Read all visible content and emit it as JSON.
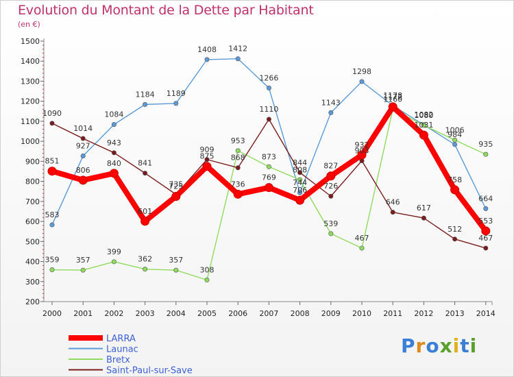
{
  "title": "Evolution du Montant de la Dette par Habitant",
  "subtitle": "(en €)",
  "logo": {
    "text": "Proxiti",
    "colors": [
      "#3a7fd5",
      "#e08a1e",
      "#3a7fd5",
      "#5aa02c",
      "#e0b020",
      "#3a7fd5",
      "#5aa02c"
    ]
  },
  "chart_data": {
    "type": "line",
    "title": "Evolution du Montant de la Dette par Habitant",
    "subtitle": "(en €)",
    "x": [
      "2000",
      "2001",
      "2002",
      "2003",
      "2004",
      "2005",
      "2006",
      "2007",
      "2008",
      "2009",
      "2010",
      "2011",
      "2012",
      "2013",
      "2014"
    ],
    "ylim": [
      200,
      1500
    ],
    "yticks": [
      200,
      300,
      400,
      500,
      600,
      700,
      800,
      900,
      1000,
      1100,
      1200,
      1300,
      1400,
      1500
    ],
    "grid": false,
    "legend": "bottom-left",
    "series": [
      {
        "name": "LARRA",
        "color": "#ff0000",
        "values": [
          851,
          806,
          840,
          601,
          725,
          875,
          736,
          769,
          706,
          827,
          932,
          1172,
          1031,
          758,
          553
        ],
        "labels": [
          "851",
          "806",
          "840",
          "601",
          "725",
          "875",
          "736",
          "769",
          "706",
          "827",
          "932",
          "1172",
          "1031",
          "758",
          "553"
        ]
      },
      {
        "name": "Launac",
        "color": "#5b9ad8",
        "values": [
          583,
          927,
          1084,
          1184,
          1189,
          1408,
          1412,
          1266,
          744,
          1143,
          1298,
          1178,
          1082,
          984,
          664
        ],
        "labels": [
          "583",
          "927",
          "1084",
          "1184",
          "1189",
          "1408",
          "1412",
          "1266",
          "744",
          "1143",
          "1298",
          "1178",
          "1082",
          "984",
          "664"
        ]
      },
      {
        "name": "Bretx",
        "color": "#8fdb5e",
        "values": [
          359,
          357,
          399,
          362,
          357,
          308,
          953,
          873,
          808,
          539,
          467,
          1160,
          1080,
          1006,
          935
        ],
        "labels": [
          "359",
          "357",
          "399",
          "362",
          "357",
          "308",
          "953",
          "873",
          "808",
          "539",
          "467",
          "1160",
          "1080",
          "1006",
          "935"
        ]
      },
      {
        "name": "Saint-Paul-sur-Save",
        "color": "#7b1c1c",
        "values": [
          1090,
          1014,
          943,
          841,
          735,
          909,
          868,
          1110,
          844,
          726,
          903,
          646,
          617,
          512,
          467
        ],
        "labels": [
          "1090",
          "1014",
          "943",
          "841",
          "735",
          "909",
          "868",
          "1110",
          "844",
          "726",
          "903",
          "646",
          "617",
          "512",
          "467"
        ]
      }
    ]
  }
}
